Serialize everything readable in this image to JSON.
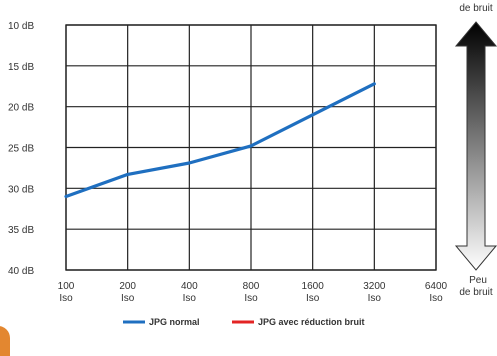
{
  "chart_data": {
    "type": "line",
    "x_categories": [
      "100 Iso",
      "200 Iso",
      "400 Iso",
      "800 Iso",
      "1600 Iso",
      "3200 Iso",
      "6400 Iso"
    ],
    "x_tick_top": [
      "100",
      "200",
      "400",
      "800",
      "1600",
      "3200",
      "6400"
    ],
    "x_tick_bottom": [
      "Iso",
      "Iso",
      "Iso",
      "Iso",
      "Iso",
      "Iso",
      "Iso"
    ],
    "y_ticks": [
      "10 dB",
      "15 dB",
      "20 dB",
      "25 dB",
      "30 dB",
      "35 dB",
      "40 dB"
    ],
    "y_tick_values": [
      10,
      15,
      20,
      25,
      30,
      35,
      40
    ],
    "ylim": [
      10,
      40
    ],
    "y_inverted": true,
    "grid": true,
    "series": [
      {
        "name": "JPG normal",
        "color": "#1f6fc0",
        "values": [
          31,
          28.3,
          26.9,
          24.8,
          21,
          17.2,
          null
        ]
      },
      {
        "name": "JPG avec réduction bruit",
        "color": "#e32424",
        "values": []
      }
    ],
    "legend_position": "bottom",
    "scale_top_label": [
      "de bruit"
    ],
    "scale_bottom_label": [
      "Peu",
      "de bruit"
    ]
  }
}
